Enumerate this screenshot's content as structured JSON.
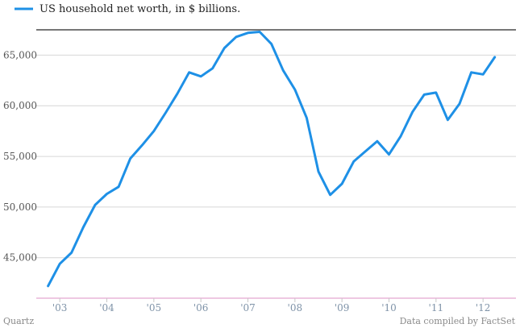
{
  "chart_data": {
    "type": "line",
    "series": [
      {
        "name": "US household net worth, in $ billions.",
        "color": "#1e90e6",
        "x": [
          2002.75,
          2003.0,
          2003.25,
          2003.5,
          2003.75,
          2004.0,
          2004.25,
          2004.5,
          2004.75,
          2005.0,
          2005.25,
          2005.5,
          2005.75,
          2006.0,
          2006.25,
          2006.5,
          2006.75,
          2007.0,
          2007.25,
          2007.5,
          2007.75,
          2008.0,
          2008.25,
          2008.5,
          2008.75,
          2009.0,
          2009.25,
          2009.5,
          2009.75,
          2010.0,
          2010.25,
          2010.5,
          2010.75,
          2011.0,
          2011.25,
          2011.5,
          2011.75,
          2012.0,
          2012.25
        ],
        "values": [
          42200,
          44400,
          45500,
          48000,
          50200,
          51300,
          52000,
          54800,
          56100,
          57500,
          59300,
          61200,
          63300,
          62900,
          63700,
          65700,
          66800,
          67200,
          67300,
          66100,
          63500,
          61600,
          58800,
          53500,
          51200,
          52300,
          54500,
          55500,
          56500,
          55200,
          57000,
          59400,
          61100,
          61300,
          58600,
          60200,
          63300,
          63100,
          64800
        ]
      }
    ],
    "x_ticks": [
      {
        "value": 2003.0,
        "label": "'03"
      },
      {
        "value": 2004.0,
        "label": "'04"
      },
      {
        "value": 2005.0,
        "label": "'05"
      },
      {
        "value": 2006.0,
        "label": "'06"
      },
      {
        "value": 2007.0,
        "label": "'07"
      },
      {
        "value": 2008.0,
        "label": "'08"
      },
      {
        "value": 2009.0,
        "label": "'09"
      },
      {
        "value": 2010.0,
        "label": "'10"
      },
      {
        "value": 2011.0,
        "label": "'11"
      },
      {
        "value": 2012.0,
        "label": "'12"
      }
    ],
    "y_ticks": [
      {
        "value": 45000,
        "label": "45,000"
      },
      {
        "value": 50000,
        "label": "50,000"
      },
      {
        "value": 55000,
        "label": "55,000"
      },
      {
        "value": 60000,
        "label": "60,000"
      },
      {
        "value": 65000,
        "label": "65,000"
      }
    ],
    "xlim": [
      2002.5,
      2012.7
    ],
    "ylim": [
      41000,
      67500
    ],
    "grid": true,
    "legend_position": "top-left",
    "source": "Data compiled by FactSet",
    "brand": "Quartz"
  }
}
